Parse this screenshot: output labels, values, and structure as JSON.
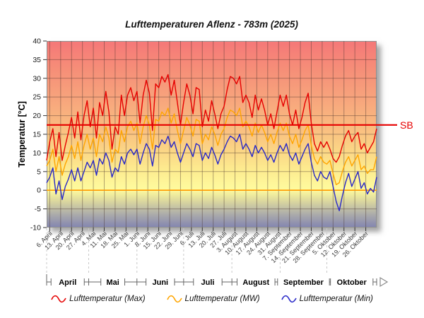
{
  "title": "Lufttemperaturen Aflenz - 783m (2025)",
  "y_axis": {
    "label": "Temperatur [°C]",
    "min": -10,
    "max": 40,
    "tick_step": 5,
    "ticks": [
      40,
      35,
      30,
      25,
      20,
      15,
      10,
      5,
      0,
      -5,
      -10
    ]
  },
  "x_axis": {
    "tick_labels": [
      "6. April",
      "13. April",
      "20. April",
      "27. April",
      "4. Mai",
      "11. Mai",
      "18. Mai",
      "25. Mai",
      "1. Juni",
      "8. Juni",
      "15. Juni",
      "22. Juni",
      "29. Juni",
      "6. Juli",
      "13. Juli",
      "20. Juli",
      "27. Juli",
      "3. August",
      "10. August",
      "17. August",
      "24. August",
      "31. August",
      "7. September",
      "14. September",
      "21. September",
      "28. September",
      "5. Oktober",
      "12. Oktober",
      "19. Oktober",
      "26. Oktober"
    ],
    "month_labels": [
      "April",
      "Mai",
      "Juni",
      "Juli",
      "August",
      "September",
      "Oktober"
    ]
  },
  "reference_lines": {
    "sb": {
      "label": "SB",
      "value": 17.5,
      "color": "#e60000"
    },
    "zero": {
      "value": 0,
      "color": "#ff9900"
    }
  },
  "scroll": {
    "right_arrow": "▶"
  },
  "legend": [
    {
      "label": "Lufttemperatur (Max)",
      "color": "#e60000",
      "icon": "wave-line-icon"
    },
    {
      "label": "Lufttemperatur (MW)",
      "color": "#ffa500",
      "icon": "wave-line-icon"
    },
    {
      "label": "Lufttemperatur (Min)",
      "color": "#2828c8",
      "icon": "wave-line-icon"
    }
  ],
  "chart_data": {
    "type": "line",
    "title": "Lufttemperaturen Aflenz - 783m (2025)",
    "xlabel": "",
    "ylabel": "Temperatur [°C]",
    "ylim": [
      -10,
      40
    ],
    "grid": true,
    "legend_position": "bottom",
    "x_range_days": 212,
    "x_sample_step_days": 2,
    "x_tick_day_offsets_start": 2,
    "x_tick_interval_days": 7,
    "month_start_day_offsets": [
      0,
      27,
      58,
      88,
      119,
      150,
      180,
      212
    ],
    "annotations": [
      {
        "label": "SB",
        "y": 17.5,
        "color": "#e60000"
      }
    ],
    "series": [
      {
        "name": "Lufttemperatur (Max)",
        "color": "#e60000",
        "values": [
          8,
          13,
          16.5,
          9,
          15.5,
          8,
          12,
          15.5,
          19.5,
          14,
          21,
          13.5,
          20,
          24,
          17,
          22,
          14,
          23.5,
          20,
          26.5,
          21,
          11,
          17,
          15,
          25.5,
          20,
          25.5,
          27.5,
          24,
          26.5,
          18,
          25.5,
          29.5,
          26,
          16,
          28.5,
          27.5,
          30.5,
          29,
          31,
          25.5,
          29.5,
          23.5,
          17.5,
          23.5,
          28.5,
          25.5,
          20.5,
          27.5,
          27,
          17,
          21.5,
          18.5,
          24,
          20.5,
          16.5,
          20.5,
          22.5,
          27,
          30.5,
          30,
          28.5,
          30.5,
          23.5,
          25.5,
          23.5,
          19.5,
          25.5,
          21.5,
          24.5,
          21.5,
          17.5,
          20.5,
          16.5,
          21,
          25.5,
          22.5,
          25.5,
          20.5,
          17.5,
          21.5,
          16.5,
          19.5,
          23.5,
          26,
          18,
          12.5,
          10.5,
          13,
          11.5,
          13,
          11,
          8.5,
          7.5,
          9,
          12,
          14.5,
          16,
          13,
          14.5,
          15.5,
          11,
          12.5,
          10,
          11.5,
          13,
          16.5
        ]
      },
      {
        "name": "Lufttemperatur (MW)",
        "color": "#ffa500",
        "values": [
          6.5,
          8,
          11,
          5,
          9,
          4,
          7,
          9,
          12,
          8.5,
          13,
          8,
          12,
          15,
          11,
          14,
          9,
          15,
          13,
          17,
          14,
          7.5,
          11,
          10,
          16,
          13,
          17,
          18.5,
          16,
          18,
          12.5,
          17,
          20,
          17.5,
          11,
          19,
          18.5,
          21,
          20,
          22,
          18,
          20.5,
          16,
          12.5,
          16,
          19.5,
          17.5,
          14.5,
          19,
          18.5,
          12.5,
          15,
          13.5,
          17,
          15,
          12,
          15,
          16.5,
          19.5,
          21.5,
          21,
          20,
          22,
          17,
          18.5,
          17,
          14.5,
          18,
          15.5,
          17.5,
          15.5,
          13,
          15,
          12.5,
          15.5,
          18,
          16,
          18,
          14.5,
          12.5,
          15,
          11.5,
          13.5,
          16,
          17.5,
          12,
          8.5,
          7,
          9,
          7.5,
          7,
          8,
          4.5,
          1.5,
          2,
          5,
          7.5,
          9,
          6.5,
          8,
          9.5,
          5.5,
          6.5,
          4.5,
          5.5,
          5.5,
          9
        ]
      },
      {
        "name": "Lufttemperatur (Min)",
        "color": "#2828c8",
        "values": [
          2,
          3.5,
          6,
          -1,
          2.5,
          -2.5,
          1,
          3,
          5.5,
          2.5,
          6,
          2.5,
          5,
          7.5,
          6,
          8,
          4,
          8.5,
          7,
          10,
          8,
          3.5,
          6,
          5,
          9,
          7,
          10,
          11,
          9.5,
          11,
          7,
          10,
          12.5,
          11,
          6.5,
          12,
          11.5,
          13.5,
          12.5,
          14.5,
          11.5,
          13,
          10,
          7.5,
          10,
          12.5,
          11,
          9,
          12.5,
          12,
          8,
          10,
          8.5,
          11.5,
          9.5,
          7,
          9.5,
          11,
          13,
          14.5,
          14,
          13,
          15,
          11,
          12.5,
          11,
          9,
          12,
          10,
          11.5,
          10,
          8,
          9.5,
          7.5,
          10,
          12,
          10.5,
          12.5,
          9.5,
          8,
          10,
          7,
          9,
          11,
          12.5,
          7.5,
          4,
          2.5,
          5,
          3.5,
          3,
          5,
          1,
          -3,
          -5.5,
          -1.5,
          2,
          4.5,
          1,
          3,
          5,
          0.5,
          2,
          -1,
          0.5,
          -0.5,
          3.5
        ]
      }
    ]
  }
}
